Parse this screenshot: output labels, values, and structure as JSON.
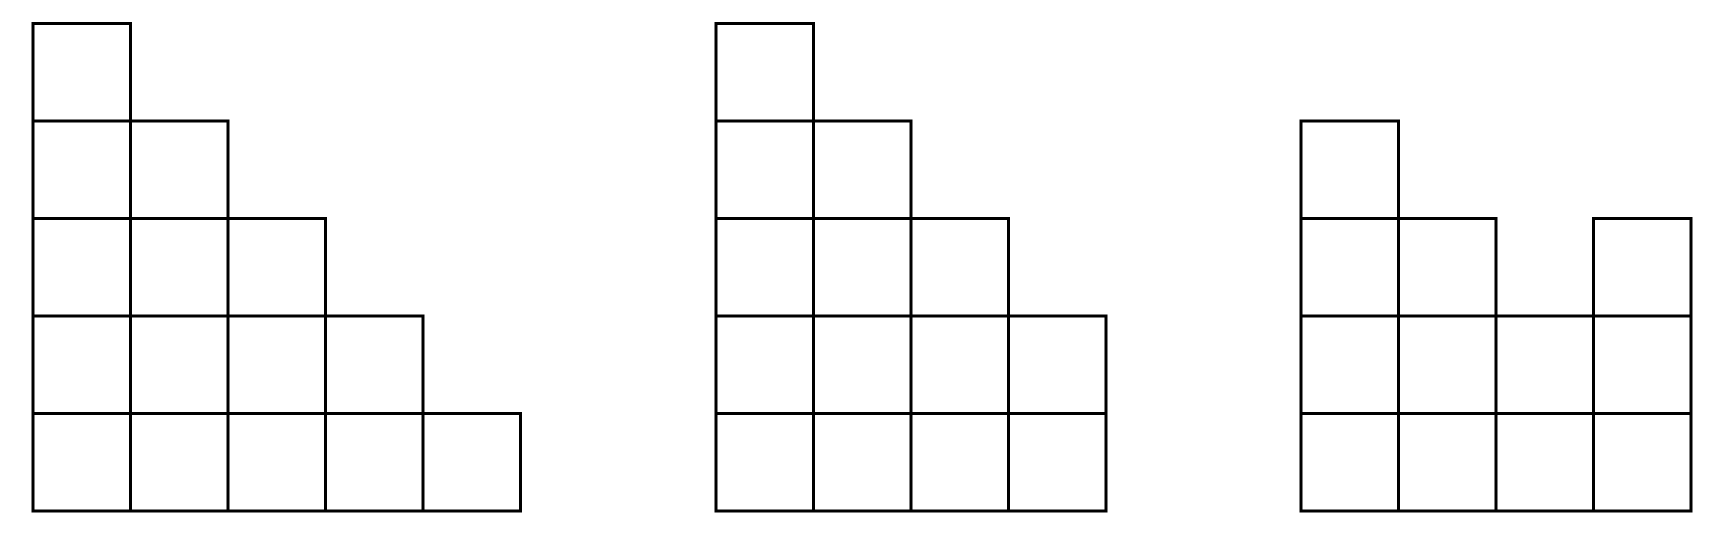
{
  "figures": [
    {
      "column_heights": [
        5,
        4,
        3,
        2,
        1
      ]
    },
    {
      "column_heights": [
        5,
        4,
        3,
        2
      ]
    },
    {
      "column_heights": [
        4,
        3,
        2,
        3
      ]
    }
  ]
}
